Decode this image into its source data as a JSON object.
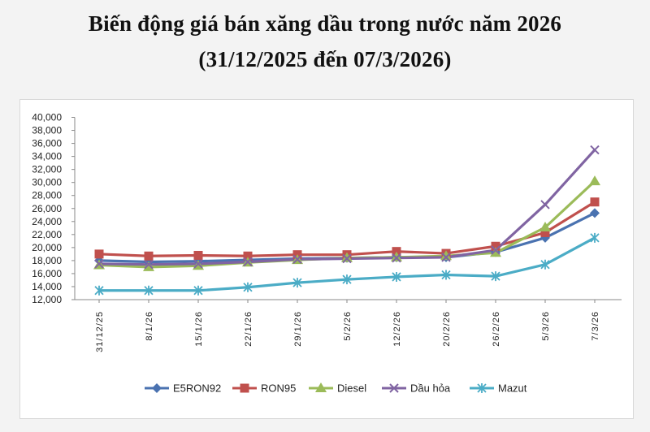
{
  "chart_data": {
    "type": "line",
    "title": "Biến động giá bán xăng dầu trong nước năm 2026",
    "subtitle": "(31/12/2025 đến 07/3/2026)",
    "xlabel": "",
    "ylabel": "",
    "ylim": [
      12000,
      40000
    ],
    "yticks": [
      "40,000",
      "38,000",
      "36,000",
      "34,000",
      "32,000",
      "30,000",
      "28,000",
      "26,000",
      "24,000",
      "22,000",
      "20,000",
      "18,000",
      "16,000",
      "14,000",
      "12,000"
    ],
    "categories": [
      "31/12/25",
      "8/1/26",
      "15/1/26",
      "22/1/26",
      "29/1/26",
      "5/2/26",
      "12/2/26",
      "20/2/26",
      "26/2/26",
      "5/3/26",
      "7/3/26"
    ],
    "legend_position": "bottom",
    "grid": false,
    "series": [
      {
        "name": "E5RON92",
        "color": "#4a72b0",
        "marker": "diamond",
        "values": [
          18000,
          17800,
          17900,
          18100,
          18300,
          18400,
          18500,
          18500,
          19300,
          21500,
          25300
        ]
      },
      {
        "name": "RON95",
        "color": "#c0504d",
        "marker": "square",
        "values": [
          19000,
          18700,
          18800,
          18700,
          18900,
          18900,
          19400,
          19100,
          20200,
          22300,
          27000
        ]
      },
      {
        "name": "Diesel",
        "color": "#9bbb59",
        "marker": "triangle",
        "values": [
          17300,
          17000,
          17200,
          17700,
          18100,
          18400,
          18500,
          18700,
          19200,
          23100,
          30200
        ]
      },
      {
        "name": "Dầu hỏa",
        "color": "#8064a2",
        "marker": "x",
        "values": [
          17500,
          17400,
          17500,
          17800,
          18200,
          18300,
          18400,
          18500,
          19600,
          26600,
          35000
        ]
      },
      {
        "name": "Mazut",
        "color": "#4bacc6",
        "marker": "star",
        "values": [
          13400,
          13400,
          13400,
          13900,
          14600,
          15100,
          15500,
          15800,
          15600,
          17400,
          21500
        ]
      }
    ]
  }
}
